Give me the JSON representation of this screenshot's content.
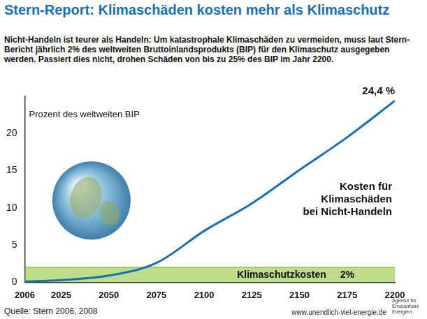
{
  "title": "Stern-Report: Klimaschäden kosten mehr als Klimaschutz",
  "subtitle": "Nicht-Handeln ist teurer als Handeln: Um katastrophale Klimaschäden zu vermeiden, muss laut Stern-Bericht jährlich 2% des weltweiten Bruttoinlandsprodukts (BIP) für den Klimaschutz ausgegeben werden. Passiert dies nicht, drohen Schäden von bis zu 25% des BIP im Jahr 2200.",
  "source": "Quelle: Stern 2006, 2008",
  "url": "www.unendlich-viel-energie.de",
  "logo": "Agentur für Erneuerbare Energien",
  "chart_data": {
    "type": "line",
    "y_label": "Prozent des weltweiten BIP",
    "x": [
      2006,
      2025,
      2050,
      2075,
      2100,
      2125,
      2150,
      2175,
      2200
    ],
    "series": [
      {
        "name": "Kosten für\nKlimaschäden\nbei Nicht-Handeln",
        "type": "line",
        "color": "#1b6fb0",
        "values": [
          0.1,
          0.3,
          0.9,
          2.6,
          6.9,
          10.6,
          15.1,
          19.5,
          24.4
        ],
        "value_labels": [
          null,
          null,
          null,
          null,
          null,
          null,
          null,
          null,
          "24,4 %"
        ]
      },
      {
        "name": "Klimaschutzkosten",
        "type": "area",
        "color": "#8dc63f",
        "values": [
          2,
          2,
          2,
          2,
          2,
          2,
          2,
          2,
          2
        ],
        "value_labels": [
          null,
          null,
          null,
          null,
          null,
          null,
          null,
          "2%",
          null
        ]
      }
    ],
    "xlim": [
      2006,
      2200
    ],
    "xticks": [
      2006,
      2025,
      2050,
      2075,
      2100,
      2125,
      2150,
      2175,
      2200
    ],
    "ylim": [
      0,
      25
    ],
    "yticks": [
      0,
      5,
      10,
      15,
      20
    ],
    "grid": false
  }
}
